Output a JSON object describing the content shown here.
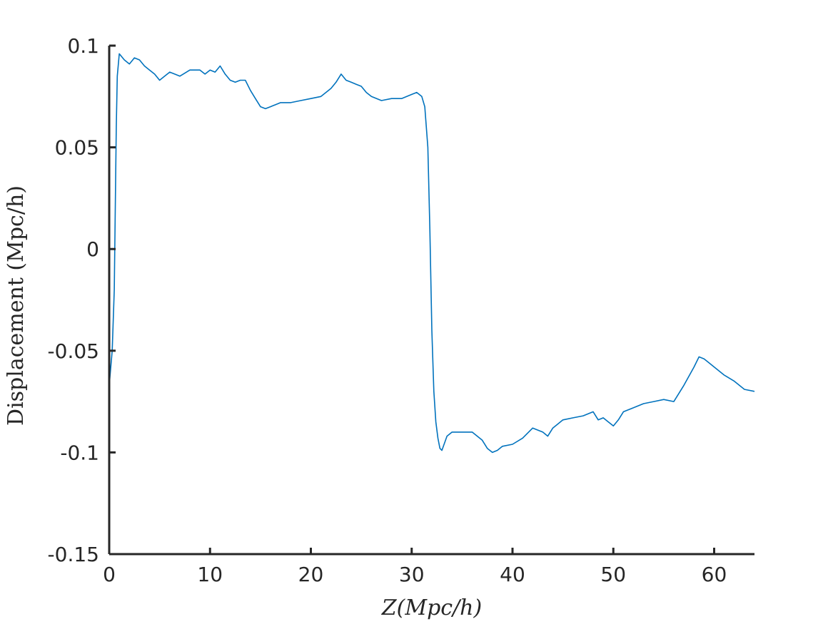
{
  "chart_data": {
    "type": "line",
    "title": "",
    "xlabel": "Z(Mpc/h)",
    "ylabel": "Displacement (Mpc/h)",
    "xlim": [
      0,
      64
    ],
    "ylim": [
      -0.15,
      0.1
    ],
    "xticks": [
      0,
      10,
      20,
      30,
      40,
      50,
      60
    ],
    "yticks": [
      -0.15,
      -0.1,
      -0.05,
      0,
      0.05,
      0.1
    ],
    "xtick_labels": [
      "0",
      "10",
      "20",
      "30",
      "40",
      "50",
      "60"
    ],
    "ytick_labels": [
      "-0.15",
      "-0.1",
      "-0.05",
      "0",
      "0.05",
      "0.1"
    ],
    "grid": false,
    "colors": {
      "series": "#0072bd",
      "axis": "#262626"
    },
    "series": [
      {
        "color": "#0072bd",
        "x": [
          0,
          0.3,
          0.5,
          0.6,
          0.7,
          0.8,
          1.0,
          1.5,
          2.0,
          2.5,
          3.0,
          3.5,
          4.0,
          4.5,
          5.0,
          5.5,
          6.0,
          6.5,
          7.0,
          8.0,
          9.0,
          9.5,
          10.0,
          10.5,
          11.0,
          11.5,
          12.0,
          12.5,
          13.0,
          13.5,
          14.0,
          14.5,
          15.0,
          15.5,
          16.0,
          16.5,
          17.0,
          18.0,
          19.0,
          20.0,
          21.0,
          22.0,
          22.5,
          23.0,
          23.5,
          24.0,
          24.5,
          25.0,
          25.5,
          26.0,
          27.0,
          28.0,
          29.0,
          30.0,
          30.5,
          31.0,
          31.3,
          31.6,
          31.8,
          32.0,
          32.2,
          32.4,
          32.6,
          32.8,
          33.0,
          33.5,
          34.0,
          35.0,
          36.0,
          37.0,
          37.5,
          38.0,
          38.5,
          39.0,
          40.0,
          41.0,
          42.0,
          43.0,
          43.5,
          44.0,
          44.5,
          45.0,
          46.0,
          47.0,
          48.0,
          48.5,
          49.0,
          49.5,
          50.0,
          50.5,
          51.0,
          52.0,
          53.0,
          54.0,
          55.0,
          56.0,
          57.0,
          58.0,
          58.5,
          59.0,
          60.0,
          61.0,
          62.0,
          63.0,
          64.0
        ],
        "y": [
          -0.067,
          -0.05,
          -0.02,
          0.02,
          0.06,
          0.085,
          0.096,
          0.093,
          0.091,
          0.094,
          0.093,
          0.09,
          0.088,
          0.086,
          0.083,
          0.085,
          0.087,
          0.086,
          0.085,
          0.088,
          0.088,
          0.086,
          0.088,
          0.087,
          0.09,
          0.086,
          0.083,
          0.082,
          0.083,
          0.083,
          0.078,
          0.074,
          0.07,
          0.069,
          0.07,
          0.071,
          0.072,
          0.072,
          0.073,
          0.074,
          0.075,
          0.079,
          0.082,
          0.086,
          0.083,
          0.082,
          0.081,
          0.08,
          0.077,
          0.075,
          0.073,
          0.074,
          0.074,
          0.076,
          0.077,
          0.075,
          0.07,
          0.05,
          0.01,
          -0.04,
          -0.07,
          -0.085,
          -0.093,
          -0.098,
          -0.099,
          -0.092,
          -0.09,
          -0.09,
          -0.09,
          -0.094,
          -0.098,
          -0.1,
          -0.099,
          -0.097,
          -0.096,
          -0.093,
          -0.088,
          -0.09,
          -0.092,
          -0.088,
          -0.086,
          -0.084,
          -0.083,
          -0.082,
          -0.08,
          -0.084,
          -0.083,
          -0.085,
          -0.087,
          -0.084,
          -0.08,
          -0.078,
          -0.076,
          -0.075,
          -0.074,
          -0.075,
          -0.067,
          -0.058,
          -0.053,
          -0.054,
          -0.058,
          -0.062,
          -0.065,
          -0.069,
          -0.07
        ]
      }
    ]
  }
}
